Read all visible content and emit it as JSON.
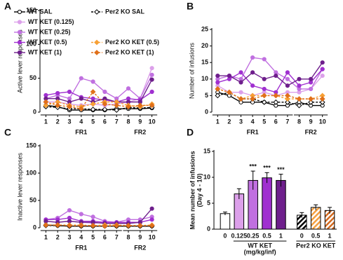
{
  "chart_data": [
    {
      "type": "line",
      "label": "A",
      "ylabel": "Active lever responses",
      "x": [
        1,
        2,
        3,
        4,
        5,
        6,
        7,
        8,
        9,
        10
      ],
      "xticks": [
        1,
        2,
        3,
        4,
        5,
        6,
        7,
        8,
        9,
        10
      ],
      "xlim": [
        0.5,
        10.5
      ],
      "ylim": [
        0,
        150
      ],
      "yticks": [
        0,
        50,
        100,
        150
      ],
      "legend": true,
      "x_groups": [
        {
          "label": "FR1",
          "range": [
            1,
            7
          ]
        },
        {
          "label": "FR2",
          "range": [
            8,
            10
          ]
        }
      ],
      "series": [
        {
          "name": "WT SAL",
          "color": "#000000",
          "marker": "circle",
          "filled": false,
          "dashed": false,
          "values": [
            10,
            8,
            3,
            3,
            3,
            3,
            5,
            5,
            5,
            6
          ]
        },
        {
          "name": "Per2 KO SAL",
          "color": "#000000",
          "marker": "diamond",
          "filled": false,
          "dashed": true,
          "values": [
            8,
            7,
            5,
            5,
            4,
            4,
            3,
            7,
            6,
            7
          ]
        },
        {
          "name": "WT KET (0.125)",
          "color": "#dca0ea",
          "marker": "circle",
          "filled": true,
          "dashed": false,
          "values": [
            15,
            15,
            12,
            10,
            12,
            10,
            12,
            15,
            20,
            65
          ]
        },
        {
          "name": "WT KET (0.25)",
          "color": "#c070e0",
          "marker": "circle",
          "filled": true,
          "dashed": false,
          "values": [
            20,
            25,
            20,
            50,
            45,
            30,
            20,
            35,
            20,
            55
          ]
        },
        {
          "name": "WT KET (0.5)",
          "color": "#a030d0",
          "marker": "circle",
          "filled": true,
          "dashed": false,
          "values": [
            25,
            28,
            30,
            22,
            20,
            18,
            15,
            20,
            18,
            30
          ]
        },
        {
          "name": "WT KET (1)",
          "color": "#6e1f8c",
          "marker": "circle",
          "filled": true,
          "dashed": false,
          "values": [
            20,
            20,
            15,
            20,
            15,
            20,
            15,
            15,
            15,
            48
          ]
        },
        {
          "name": "Per2 KO KET (0.5)",
          "color": "#f7a035",
          "marker": "diamond",
          "filled": true,
          "dashed": true,
          "values": [
            10,
            15,
            10,
            8,
            12,
            15,
            15,
            10,
            8,
            12
          ]
        },
        {
          "name": "Per2 KO KET (1)",
          "color": "#e0701a",
          "marker": "diamond",
          "filled": true,
          "dashed": true,
          "values": [
            15,
            10,
            8,
            5,
            30,
            12,
            10,
            8,
            10,
            10
          ]
        }
      ]
    },
    {
      "type": "line",
      "label": "B",
      "ylabel": "Number of infusions",
      "x": [
        1,
        2,
        3,
        4,
        5,
        6,
        7,
        8,
        9,
        10
      ],
      "xticks": [
        1,
        2,
        3,
        4,
        5,
        6,
        7,
        8,
        9,
        10
      ],
      "xlim": [
        0.5,
        10.5
      ],
      "ylim": [
        0,
        25
      ],
      "yticks": [
        0,
        5,
        10,
        15,
        20,
        25
      ],
      "x_groups": [
        {
          "label": "FR1",
          "range": [
            1,
            7
          ]
        },
        {
          "label": "FR2",
          "range": [
            8,
            10
          ]
        }
      ],
      "series": [
        {
          "color": "#000000",
          "marker": "circle",
          "filled": false,
          "dashed": false,
          "values": [
            6,
            5,
            3,
            3,
            3,
            2,
            2,
            3,
            2,
            2
          ]
        },
        {
          "color": "#000000",
          "marker": "diamond",
          "filled": false,
          "dashed": true,
          "values": [
            5,
            6,
            4,
            4,
            3,
            3,
            3,
            2,
            3,
            3
          ]
        },
        {
          "color": "#dca0ea",
          "marker": "circle",
          "filled": true,
          "dashed": false,
          "values": [
            8,
            6,
            6,
            5,
            6,
            5,
            6,
            6,
            7,
            11
          ]
        },
        {
          "color": "#c070e0",
          "marker": "circle",
          "filled": true,
          "dashed": false,
          "values": [
            10,
            11,
            10,
            16.5,
            16,
            12,
            10,
            7,
            7,
            13
          ]
        },
        {
          "color": "#a030d0",
          "marker": "circle",
          "filled": true,
          "dashed": false,
          "values": [
            9,
            10,
            12,
            8,
            7,
            6,
            12,
            8,
            9,
            13
          ]
        },
        {
          "color": "#6e1f8c",
          "marker": "circle",
          "filled": true,
          "dashed": false,
          "values": [
            11,
            11,
            9,
            12,
            10,
            11,
            8,
            10,
            10,
            15
          ]
        },
        {
          "color": "#f7a035",
          "marker": "diamond",
          "filled": true,
          "dashed": true,
          "values": [
            7,
            6,
            4,
            5,
            5,
            5,
            4,
            4,
            4,
            5
          ]
        },
        {
          "color": "#e0701a",
          "marker": "diamond",
          "filled": true,
          "dashed": true,
          "values": [
            7,
            6,
            4,
            4,
            5,
            5,
            5,
            4,
            4,
            4
          ]
        }
      ]
    },
    {
      "type": "line",
      "label": "C",
      "ylabel": "Inactive lever responses",
      "x": [
        1,
        2,
        3,
        4,
        5,
        6,
        7,
        8,
        9,
        10
      ],
      "xticks": [
        1,
        2,
        3,
        4,
        5,
        6,
        7,
        8,
        9,
        10
      ],
      "xlim": [
        0.5,
        10.5
      ],
      "ylim": [
        0,
        150
      ],
      "yticks": [
        0,
        50,
        100,
        150
      ],
      "x_groups": [
        {
          "label": "FR1",
          "range": [
            1,
            7
          ]
        },
        {
          "label": "FR2",
          "range": [
            8,
            10
          ]
        }
      ],
      "series": [
        {
          "color": "#000000",
          "marker": "circle",
          "filled": false,
          "dashed": false,
          "values": [
            5,
            4,
            3,
            3,
            3,
            3,
            3,
            3,
            3,
            3
          ]
        },
        {
          "color": "#000000",
          "marker": "diamond",
          "filled": false,
          "dashed": true,
          "values": [
            4,
            4,
            3,
            3,
            3,
            3,
            3,
            3,
            3,
            3
          ]
        },
        {
          "color": "#dca0ea",
          "marker": "circle",
          "filled": true,
          "dashed": false,
          "values": [
            12,
            10,
            12,
            10,
            8,
            10,
            10,
            8,
            10,
            15
          ]
        },
        {
          "color": "#c070e0",
          "marker": "circle",
          "filled": true,
          "dashed": false,
          "values": [
            15,
            18,
            32,
            25,
            20,
            12,
            10,
            15,
            15,
            20
          ]
        },
        {
          "color": "#a030d0",
          "marker": "circle",
          "filled": true,
          "dashed": false,
          "values": [
            15,
            15,
            18,
            12,
            12,
            10,
            10,
            10,
            10,
            15
          ]
        },
        {
          "color": "#6e1f8c",
          "marker": "circle",
          "filled": true,
          "dashed": false,
          "values": [
            12,
            10,
            12,
            10,
            10,
            8,
            8,
            8,
            10,
            35
          ]
        },
        {
          "color": "#f7a035",
          "marker": "diamond",
          "filled": true,
          "dashed": true,
          "values": [
            5,
            5,
            5,
            5,
            4,
            5,
            5,
            4,
            4,
            5
          ]
        },
        {
          "color": "#e0701a",
          "marker": "diamond",
          "filled": true,
          "dashed": true,
          "values": [
            5,
            5,
            4,
            4,
            4,
            3,
            4,
            4,
            4,
            4
          ]
        }
      ]
    },
    {
      "type": "bar",
      "label": "D",
      "ylabel": [
        "Mean number of infusions",
        "(Day 4 - 10)"
      ],
      "ylim": [
        0,
        15
      ],
      "yticks": [
        0,
        5,
        10,
        15
      ],
      "groups": [
        {
          "label": "WT KET",
          "sublabel": "(mg/kg/inf)",
          "categories": [
            "0",
            "0.125",
            "0.25",
            "0.5",
            "1"
          ]
        },
        {
          "label": "Per2 KO KET",
          "categories": [
            "0",
            "0.5",
            "1"
          ]
        }
      ],
      "values": [
        3.0,
        6.8,
        9.4,
        9.9,
        9.4,
        2.7,
        4.2,
        3.6
      ],
      "errors": [
        0.3,
        1.0,
        1.8,
        1.0,
        1.2,
        0.5,
        0.5,
        0.6
      ],
      "colors": [
        "#ffffff",
        "#dca0ea",
        "#c070e0",
        "#a030d0",
        "#6e1f8c",
        "#000000",
        "#f5a040",
        "#d2691e"
      ],
      "hatched": [
        false,
        false,
        false,
        false,
        false,
        true,
        true,
        true
      ],
      "significance": [
        null,
        null,
        "***",
        "***",
        "***",
        null,
        null,
        null
      ]
    }
  ]
}
